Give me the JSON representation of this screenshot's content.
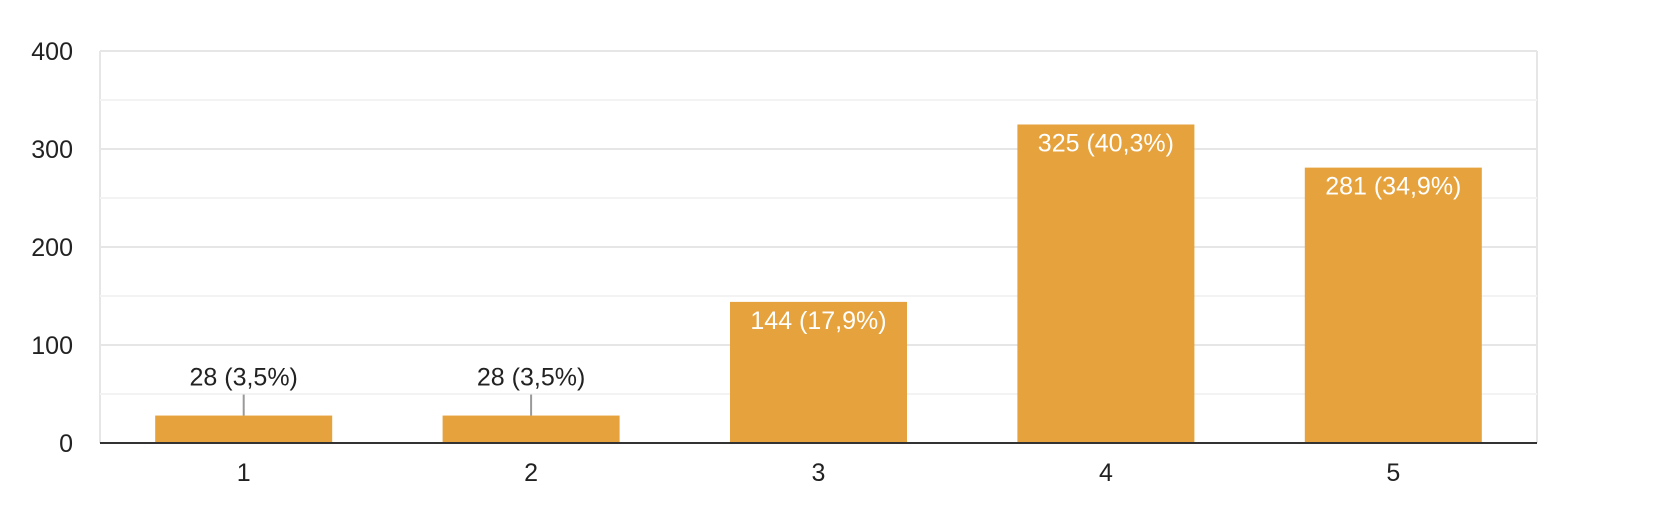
{
  "chart_data": {
    "type": "bar",
    "categories": [
      "1",
      "2",
      "3",
      "4",
      "5"
    ],
    "values": [
      28,
      28,
      144,
      325,
      281
    ],
    "data_labels": [
      "28 (3,5%)",
      "28 (3,5%)",
      "144 (17,9%)",
      "325 (40,3%)",
      "281 (34,9%)"
    ],
    "yticks": [
      0,
      100,
      200,
      300,
      400
    ],
    "ylim": [
      0,
      400
    ],
    "grid": true,
    "bar_color": "#E6A23C",
    "title": "",
    "xlabel": "",
    "ylabel": ""
  }
}
